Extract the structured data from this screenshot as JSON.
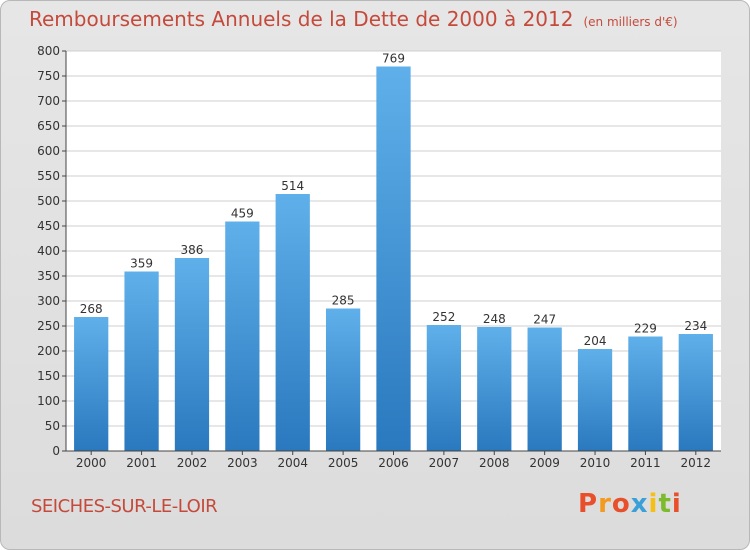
{
  "header": {
    "title": "Remboursements Annuels de la Dette de 2000 à 2012",
    "unit": "(en milliers d'€)"
  },
  "footer": {
    "commune": "SEICHES-SUR-LE-LOIR",
    "logo_letters": [
      "P",
      "r",
      "o",
      "x",
      "i",
      "t",
      "i"
    ],
    "logo_colors": [
      "#e8502b",
      "#f39a1f",
      "#e8502b",
      "#3aa0d8",
      "#f5c013",
      "#7dbb2d",
      "#e8502b"
    ]
  },
  "chart_data": {
    "type": "bar",
    "title": "Remboursements Annuels de la Dette de 2000 à 2012",
    "categories": [
      "2000",
      "2001",
      "2002",
      "2003",
      "2004",
      "2005",
      "2006",
      "2007",
      "2008",
      "2009",
      "2010",
      "2011",
      "2012"
    ],
    "values": [
      268,
      359,
      386,
      459,
      514,
      285,
      769,
      252,
      248,
      247,
      204,
      229,
      234
    ],
    "ylim": [
      0,
      800
    ],
    "yticks": [
      0,
      50,
      100,
      150,
      200,
      250,
      300,
      350,
      400,
      450,
      500,
      550,
      600,
      650,
      700,
      750,
      800
    ],
    "grid": true,
    "bar_color": "#3f93d6"
  }
}
